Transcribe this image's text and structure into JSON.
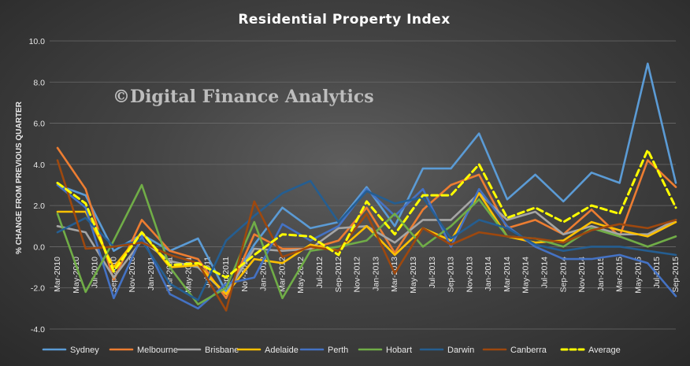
{
  "chart_data": {
    "type": "line",
    "title": "Residential Property Index",
    "ylabel": "% CHANGE FROM PREVIOUS QUARTER",
    "xlabel": "",
    "watermark": "©Digital Finance Analytics",
    "ylim": [
      -4.0,
      10.0
    ],
    "yticks": [
      "10.0",
      "8.0",
      "6.0",
      "4.0",
      "2.0",
      "0.0",
      "-2.0",
      "-4.0"
    ],
    "grid": true,
    "legend_position": "bottom",
    "x": [
      "Mar-2010",
      "Jun-2010",
      "Sep-2010",
      "Dec-2010",
      "Mar-2011",
      "Jun-2011",
      "Sep-2011",
      "Dec-2011",
      "Mar-2012",
      "Jun-2012",
      "Sep-2012",
      "Dec-2012",
      "Mar-2013",
      "Jun-2013",
      "Sep-2013",
      "Dec-2013",
      "Mar-2014",
      "Jun-2014",
      "Sep-2014",
      "Dec-2014",
      "Mar-2015",
      "Jun-2015",
      "Sep-2015"
    ],
    "xtick_labels": [
      "Mar-2010",
      "May-2010",
      "Jul-2010",
      "Sep-2010",
      "Nov-2010",
      "Jan-2011",
      "Mar-2011",
      "May-2011",
      "Jul-2011",
      "Sep-2011",
      "Nov-2011",
      "Jan-2012",
      "Mar-2012",
      "May-2012",
      "Jul-2012",
      "Sep-2012",
      "Nov-2012",
      "Jan-2013",
      "Mar-2013",
      "May-2013",
      "Jul-2013",
      "Sep-2013",
      "Nov-2013",
      "Jan-2014",
      "Mar-2014",
      "May-2014",
      "Jul-2014",
      "Sep-2014",
      "Nov-2014",
      "Jan-2015",
      "Mar-2015",
      "May-2015",
      "Jul-2015",
      "Sep-2015"
    ],
    "series": [
      {
        "name": "Sydney",
        "color": "#5b9bd5",
        "dashed": false,
        "values": [
          3.0,
          2.5,
          -0.2,
          0.6,
          -0.2,
          0.4,
          -2.2,
          0.1,
          1.9,
          0.9,
          1.2,
          2.9,
          1.0,
          3.8,
          3.8,
          5.5,
          2.3,
          3.5,
          2.2,
          3.6,
          3.1,
          8.9,
          3.1
        ]
      },
      {
        "name": "Melbourne",
        "color": "#ed7d31",
        "dashed": false,
        "values": [
          4.8,
          2.8,
          -1.6,
          1.3,
          -0.2,
          -0.6,
          -2.5,
          0.6,
          -0.1,
          -0.1,
          0.3,
          1.9,
          -0.3,
          1.8,
          3.0,
          3.5,
          0.9,
          1.3,
          0.6,
          1.8,
          0.5,
          4.2,
          2.9
        ]
      },
      {
        "name": "Brisbane",
        "color": "#a5a5a5",
        "dashed": false,
        "values": [
          1.0,
          0.7,
          -1.5,
          0.3,
          -0.7,
          -1.0,
          -2.3,
          -0.1,
          -0.2,
          -0.1,
          0.9,
          1.0,
          0.2,
          1.3,
          1.3,
          2.6,
          1.3,
          1.7,
          0.6,
          1.0,
          0.6,
          0.6,
          1.3
        ]
      },
      {
        "name": "Adelaide",
        "color": "#ffc000",
        "dashed": false,
        "values": [
          1.7,
          1.7,
          -1.0,
          0.7,
          -1.0,
          -0.9,
          -2.3,
          -0.6,
          -0.8,
          0.1,
          -0.2,
          1.0,
          -0.4,
          0.9,
          0.3,
          2.6,
          0.5,
          0.2,
          0.3,
          1.2,
          0.8,
          0.5,
          1.2
        ]
      },
      {
        "name": "Perth",
        "color": "#4472c4",
        "dashed": false,
        "values": [
          3.0,
          1.9,
          -2.5,
          0.5,
          -2.3,
          -3.0,
          -1.8,
          -1.5,
          1.1,
          0.3,
          1.0,
          2.8,
          1.5,
          2.8,
          0.0,
          2.8,
          1.0,
          0.0,
          -0.6,
          -0.6,
          -0.4,
          -0.8,
          -2.4
        ]
      },
      {
        "name": "Hobart",
        "color": "#70ad47",
        "dashed": false,
        "values": [
          1.6,
          -2.2,
          0.3,
          3.0,
          -1.0,
          -2.8,
          -2.0,
          1.2,
          -2.5,
          -0.2,
          0.0,
          0.3,
          1.6,
          0.0,
          1.0,
          2.3,
          0.5,
          0.4,
          0.0,
          0.9,
          0.5,
          0.0,
          0.5
        ]
      },
      {
        "name": "Darwin",
        "color": "#255e91",
        "dashed": false,
        "values": [
          0.7,
          1.4,
          0.0,
          0.3,
          -1.8,
          -2.6,
          0.3,
          1.5,
          2.6,
          3.2,
          1.2,
          2.7,
          2.1,
          2.4,
          0.4,
          1.3,
          0.9,
          0.1,
          -0.2,
          0.0,
          0.0,
          -0.2,
          -0.4
        ]
      },
      {
        "name": "Canberra",
        "color": "#9e480e",
        "dashed": false,
        "values": [
          4.2,
          -0.1,
          0.0,
          0.2,
          -0.4,
          -0.8,
          -3.1,
          2.2,
          -0.5,
          0.0,
          -0.2,
          1.6,
          -1.3,
          0.9,
          0.1,
          0.7,
          0.5,
          0.4,
          0.2,
          0.8,
          1.1,
          0.9,
          1.3
        ]
      },
      {
        "name": "Average",
        "color": "#ffff00",
        "dashed": true,
        "values": [
          3.1,
          2.1,
          -1.2,
          0.7,
          -0.9,
          -0.8,
          -1.5,
          -0.4,
          0.6,
          0.5,
          -0.4,
          2.2,
          0.6,
          2.5,
          2.5,
          4.0,
          1.4,
          1.9,
          1.2,
          2.0,
          1.6,
          4.7,
          1.9
        ]
      }
    ]
  }
}
